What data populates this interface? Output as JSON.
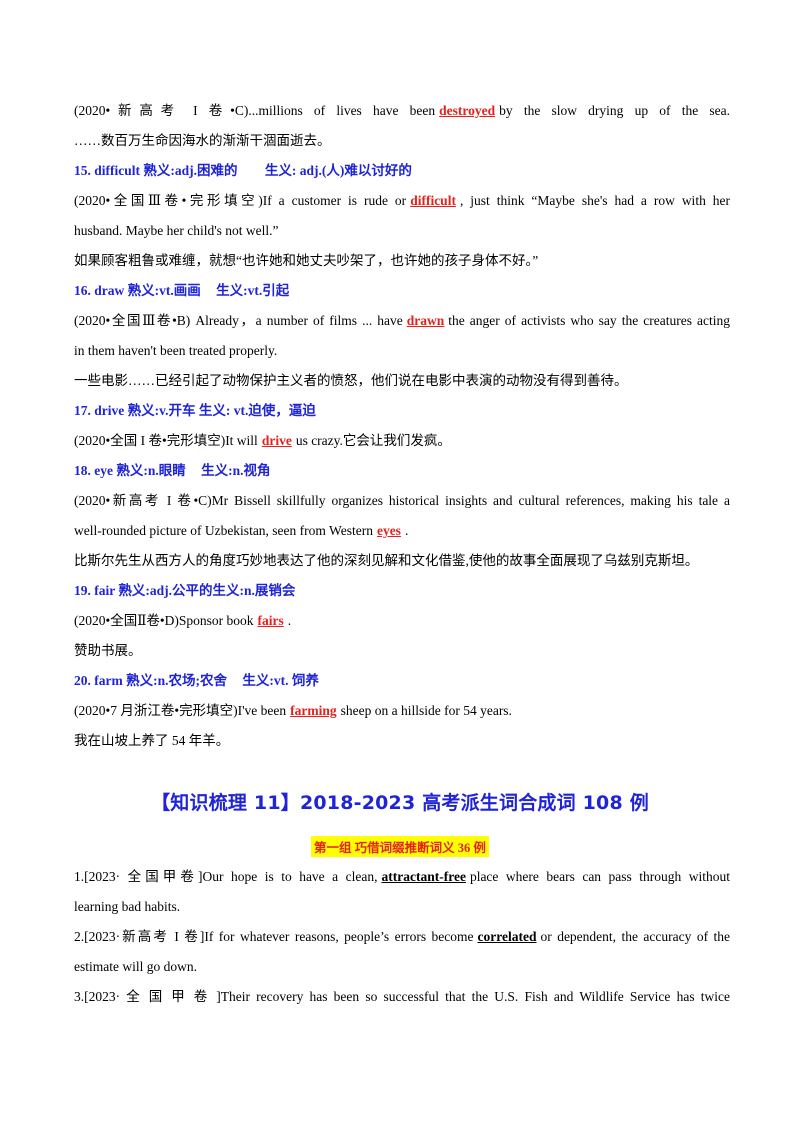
{
  "items": [
    {
      "source_line": {
        "pre": "(2020•新高考 I 卷•C)...millions of lives have been",
        "kw": "destroyed",
        "post": "by the slow drying up of the sea."
      },
      "translation": "……数百万生命因海水的渐渐干涸面逝去。"
    },
    {
      "heading": {
        "num": "15.",
        "word": "difficult",
        "familiar": "熟义:adj.困难的",
        "new": "生义: adj.(人)难以讨好的"
      },
      "source_line1": {
        "pre": "(2020•全国Ⅲ卷•完形填空)If a customer is rude or",
        "kw": "difficult",
        "post": ", just think “Maybe she's had a row with her"
      },
      "source_line2": "husband. Maybe her child's not well.”",
      "translation": "如果顾客粗鲁或难缠，就想“也许她和她丈夫吵架了，也许她的孩子身体不好。”"
    },
    {
      "heading": {
        "num": "16.",
        "word": "draw",
        "familiar": "熟义:vt.画画",
        "new": "生义:vt.引起"
      },
      "source_line1": {
        "pre": "(2020•全国Ⅲ卷•B) Already，a number of films ... have",
        "kw": "drawn",
        "post": "the anger of activists who say the creatures acting"
      },
      "source_line2": "in them haven't been treated properly.",
      "translation": "一些电影……已经引起了动物保护主义者的愤怒，他们说在电影中表演的动物没有得到善待。"
    },
    {
      "heading": {
        "num": "17.",
        "word": "drive",
        "familiar": "熟义:v.开车",
        "new": "生义: vt.迫使，逼迫"
      },
      "source_line1": {
        "pre": "(2020•全国 I 卷•完形填空)It will",
        "kw": "drive",
        "post": "us crazy.它会让我们发疯。"
      }
    },
    {
      "heading": {
        "num": "18.",
        "word": "eye",
        "familiar": "熟义:n.眼睛",
        "new": "生义:n.视角"
      },
      "source_line1": {
        "pre": "(2020•新高考 I 卷•C)Mr Bissell skillfully organizes historical insights and cultural references, making his tale a",
        "kw": "",
        "post": ""
      },
      "source_line2a": {
        "pre": "well-rounded picture of Uzbekistan, seen from Western",
        "kw": "eyes",
        "post": "."
      },
      "translation": "比斯尔先生从西方人的角度巧妙地表达了他的深刻见解和文化借鉴,使他的故事全面展现了乌兹别克斯坦。"
    },
    {
      "heading": {
        "num": "19.",
        "word": "fair",
        "familiar": "熟义:adj.公平的生义:n.展销会",
        "new": ""
      },
      "source_line1": {
        "pre": "(2020•全国Ⅱ卷•D)Sponsor book",
        "kw": "fairs",
        "post": "."
      },
      "translation": "赞助书展。"
    },
    {
      "heading": {
        "num": "20.",
        "word": "farm",
        "familiar": "熟义:n.农场;农舍",
        "new": "生义:vt. 饲养"
      },
      "source_line1": {
        "pre": "(2020•7 月浙江卷•完形填空)I've been",
        "kw": "farming",
        "post": "sheep on a hillside for 54 years."
      },
      "translation": "我在山坡上养了 54 年羊。"
    }
  ],
  "section_title": "【知识梳理 11】2018-2023 高考派生词合成词 108 例",
  "group_label": "第一组  巧借词缀推断词义 36 例",
  "examples": [
    {
      "line1": {
        "pre": "1.[2023· 全国甲卷]Our hope is to have a clean,",
        "kw": "attractant-free",
        "post": "place where bears can pass through without"
      },
      "line2": "learning bad habits."
    },
    {
      "line1": {
        "pre": "2.[2023·新高考 I 卷]If for whatever reasons,  people’s errors become",
        "kw": "correlated",
        "post": "or dependent, the accuracy of the"
      },
      "line2": "estimate will go down."
    },
    {
      "line1": {
        "pre": "3.[2023· 全 国 甲 卷 ]Their recovery has been so successful that the U.S. Fish and Wildlife Service has twice",
        "kw": "",
        "post": ""
      }
    }
  ]
}
